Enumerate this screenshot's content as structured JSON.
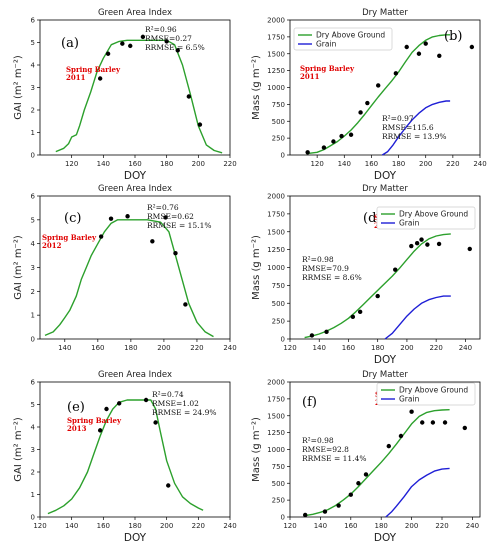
{
  "colors": {
    "green_curve": "#2ca02c",
    "grain_curve": "#1f1fd6",
    "observed_points": "#000000",
    "crop_label": "#e00000"
  },
  "chart_data": [
    {
      "id": "a",
      "type": "line",
      "title": "Green Area Index",
      "xlabel": "DOY",
      "ylabel": "GAI (m² m⁻²)",
      "xlim": [
        100,
        220
      ],
      "ylim": [
        0,
        6
      ],
      "xticks": [
        "120",
        "140",
        "160",
        "180",
        "200",
        "220"
      ],
      "xtick_values": [
        120,
        140,
        160,
        180,
        200,
        220
      ],
      "yticks": [
        "0",
        "1",
        "2",
        "3",
        "4",
        "5",
        "6"
      ],
      "ytick_values": [
        0,
        1,
        2,
        3,
        4,
        5,
        6
      ],
      "panel_letter": "(a)",
      "crop_label": [
        "Spring Barley",
        "2011"
      ],
      "stats": [
        "R²=0.96",
        "RMSE=0.27",
        "RRMSE = 6.5%"
      ],
      "legend": [],
      "series": [
        {
          "kind": "line",
          "color": "#2ca02c",
          "x": [
            110,
            115,
            118,
            120,
            123,
            125,
            128,
            132,
            136,
            140,
            145,
            150,
            155,
            160,
            165,
            170,
            175,
            180,
            185,
            190,
            195,
            200,
            205,
            210,
            215
          ],
          "y": [
            0.15,
            0.3,
            0.5,
            0.8,
            0.9,
            1.3,
            2.0,
            2.8,
            3.7,
            4.3,
            4.9,
            5.05,
            5.1,
            5.1,
            5.1,
            5.1,
            5.1,
            5.1,
            4.9,
            4.0,
            2.7,
            1.3,
            0.45,
            0.2,
            0.1
          ]
        },
        {
          "kind": "scatter",
          "color": "#000000",
          "x": [
            138,
            143,
            152,
            157,
            165,
            180,
            187,
            194,
            201
          ],
          "y": [
            3.4,
            4.5,
            4.95,
            4.85,
            5.25,
            5.05,
            4.65,
            2.6,
            1.35
          ]
        }
      ]
    },
    {
      "id": "b",
      "type": "line",
      "title": "Dry Matter",
      "xlabel": "DOY",
      "ylabel": "Mass (g m⁻²)",
      "xlim": [
        100,
        240
      ],
      "ylim": [
        0,
        2000
      ],
      "xticks": [
        "120",
        "140",
        "160",
        "180",
        "200",
        "220",
        "240"
      ],
      "xtick_values": [
        120,
        140,
        160,
        180,
        200,
        220,
        240
      ],
      "yticks": [
        "0",
        "250",
        "500",
        "750",
        "1000",
        "1250",
        "1500",
        "1750",
        "2000"
      ],
      "ytick_values": [
        0,
        250,
        500,
        750,
        1000,
        1250,
        1500,
        1750,
        2000
      ],
      "panel_letter": "(b)",
      "crop_label": [
        "Spring Barley",
        "2011"
      ],
      "stats": [
        "R²=0.97",
        "RMSE=115.6",
        "RRMSE = 13.9%"
      ],
      "legend": [
        "Dry Above Ground",
        "Grain"
      ],
      "series": [
        {
          "kind": "line",
          "name": "Dry Above Ground",
          "color": "#2ca02c",
          "x": [
            112,
            120,
            125,
            130,
            135,
            140,
            145,
            150,
            155,
            160,
            165,
            170,
            175,
            180,
            185,
            190,
            195,
            200,
            205,
            210,
            215,
            218
          ],
          "y": [
            20,
            40,
            80,
            140,
            200,
            280,
            370,
            480,
            600,
            730,
            860,
            980,
            1100,
            1230,
            1380,
            1520,
            1620,
            1700,
            1750,
            1770,
            1780,
            1780
          ]
        },
        {
          "kind": "line",
          "name": "Grain",
          "color": "#1f1fd6",
          "x": [
            168,
            172,
            176,
            180,
            185,
            190,
            195,
            200,
            205,
            210,
            215,
            218
          ],
          "y": [
            0,
            50,
            150,
            270,
            400,
            520,
            620,
            700,
            750,
            780,
            800,
            800
          ]
        },
        {
          "kind": "scatter",
          "color": "#000000",
          "x": [
            113,
            125,
            132,
            138,
            145,
            152,
            157,
            165,
            178,
            186,
            195,
            200,
            210,
            234
          ],
          "y": [
            40,
            110,
            200,
            280,
            300,
            630,
            770,
            1030,
            1210,
            1600,
            1500,
            1650,
            1470,
            1600
          ]
        }
      ]
    },
    {
      "id": "c",
      "type": "line",
      "title": "Green Area Index",
      "xlabel": "",
      "ylabel": "GAI (m² m⁻²)",
      "xlim": [
        125,
        240
      ],
      "ylim": [
        0,
        6
      ],
      "xticks": [
        "140",
        "160",
        "180",
        "200",
        "220",
        "240"
      ],
      "xtick_values": [
        140,
        160,
        180,
        200,
        220,
        240
      ],
      "yticks": [
        "0",
        "1",
        "2",
        "3",
        "4",
        "5",
        "6"
      ],
      "ytick_values": [
        0,
        1,
        2,
        3,
        4,
        5,
        6
      ],
      "panel_letter": "(c)",
      "crop_label": [
        "Spring Barley",
        "2012"
      ],
      "stats": [
        "R²=0.76",
        "RMSE=0.62",
        "RRMSE = 15.1%"
      ],
      "legend": [],
      "series": [
        {
          "kind": "line",
          "color": "#2ca02c",
          "x": [
            128,
            133,
            137,
            140,
            143,
            147,
            150,
            153,
            156,
            160,
            164,
            168,
            172,
            180,
            190,
            198,
            203,
            207,
            211,
            215,
            220,
            225,
            230
          ],
          "y": [
            0.15,
            0.3,
            0.6,
            0.9,
            1.2,
            1.8,
            2.5,
            3.0,
            3.5,
            4.0,
            4.5,
            4.85,
            5.0,
            5.0,
            5.0,
            4.9,
            4.5,
            3.5,
            2.5,
            1.5,
            0.7,
            0.3,
            0.1
          ]
        },
        {
          "kind": "scatter",
          "color": "#000000",
          "x": [
            162,
            168,
            178,
            193,
            201,
            207,
            213
          ],
          "y": [
            4.3,
            5.05,
            5.15,
            4.1,
            5.1,
            3.6,
            1.45
          ]
        }
      ]
    },
    {
      "id": "d",
      "type": "line",
      "title": "Dry Matter",
      "xlabel": "DOY",
      "ylabel": "Mass (g m⁻²)",
      "xlim": [
        120,
        250
      ],
      "ylim": [
        0,
        2000
      ],
      "xticks": [
        "120",
        "140",
        "160",
        "180",
        "200",
        "220",
        "240"
      ],
      "xtick_values": [
        120,
        140,
        160,
        180,
        200,
        220,
        240
      ],
      "yticks": [
        "0",
        "250",
        "500",
        "750",
        "1000",
        "1250",
        "1500",
        "1750",
        "2000"
      ],
      "ytick_values": [
        0,
        250,
        500,
        750,
        1000,
        1250,
        1500,
        1750,
        2000
      ],
      "panel_letter": "(d)",
      "crop_label": [
        "Spring Barley",
        "2012"
      ],
      "stats": [
        "R²=0.98",
        "RMSE=70.9",
        "RRMSE = 8.6%"
      ],
      "legend": [
        "Dry Above Ground",
        "Grain"
      ],
      "series": [
        {
          "kind": "line",
          "name": "Dry Above Ground",
          "color": "#2ca02c",
          "x": [
            130,
            135,
            140,
            145,
            150,
            155,
            160,
            165,
            170,
            175,
            180,
            185,
            190,
            195,
            200,
            205,
            210,
            215,
            220,
            225,
            230
          ],
          "y": [
            20,
            40,
            70,
            110,
            160,
            220,
            290,
            380,
            480,
            580,
            680,
            780,
            880,
            990,
            1110,
            1230,
            1330,
            1400,
            1440,
            1460,
            1470
          ]
        },
        {
          "kind": "line",
          "name": "Grain",
          "color": "#1f1fd6",
          "x": [
            185,
            190,
            195,
            200,
            205,
            210,
            215,
            220,
            225,
            230
          ],
          "y": [
            0,
            80,
            200,
            320,
            420,
            500,
            550,
            580,
            600,
            600
          ]
        },
        {
          "kind": "scatter",
          "color": "#000000",
          "x": [
            135,
            145,
            163,
            168,
            180,
            192,
            203,
            207,
            210,
            214,
            222,
            243
          ],
          "y": [
            50,
            100,
            310,
            380,
            600,
            970,
            1300,
            1340,
            1390,
            1320,
            1330,
            1260
          ]
        }
      ]
    },
    {
      "id": "e",
      "type": "line",
      "title": "Green Area Index",
      "xlabel": "DOY",
      "ylabel": "GAI (m² m⁻²)",
      "xlim": [
        120,
        240
      ],
      "ylim": [
        0,
        6
      ],
      "xticks": [
        "120",
        "140",
        "160",
        "180",
        "200",
        "220",
        "240"
      ],
      "xtick_values": [
        120,
        140,
        160,
        180,
        200,
        220,
        240
      ],
      "yticks": [
        "0",
        "1",
        "2",
        "3",
        "4",
        "5",
        "6"
      ],
      "ytick_values": [
        0,
        1,
        2,
        3,
        4,
        5,
        6
      ],
      "panel_letter": "(e)",
      "crop_label": [
        "Spring Barley",
        "2013"
      ],
      "stats": [
        "R²=0.74",
        "RMSE=1.02",
        "RRMSE = 24.9%"
      ],
      "legend": [],
      "series": [
        {
          "kind": "line",
          "color": "#2ca02c",
          "x": [
            125,
            130,
            135,
            140,
            145,
            150,
            154,
            158,
            162,
            166,
            170,
            175,
            180,
            185,
            190,
            193,
            196,
            200,
            205,
            210,
            215,
            220,
            223
          ],
          "y": [
            0.15,
            0.3,
            0.5,
            0.8,
            1.3,
            2.0,
            2.8,
            3.6,
            4.3,
            4.8,
            5.1,
            5.2,
            5.2,
            5.2,
            5.2,
            4.8,
            3.8,
            2.5,
            1.5,
            0.9,
            0.6,
            0.4,
            0.3
          ]
        },
        {
          "kind": "scatter",
          "color": "#000000",
          "x": [
            158,
            162,
            170,
            187,
            193,
            201
          ],
          "y": [
            3.85,
            4.8,
            5.05,
            5.2,
            4.2,
            1.4
          ]
        }
      ]
    },
    {
      "id": "f",
      "type": "line",
      "title": "Dry Matter",
      "xlabel": "DOY",
      "ylabel": "Mass (g m⁻²)",
      "xlim": [
        120,
        245
      ],
      "ylim": [
        0,
        2000
      ],
      "xticks": [
        "120",
        "140",
        "160",
        "180",
        "200",
        "220",
        "240"
      ],
      "xtick_values": [
        120,
        140,
        160,
        180,
        200,
        220,
        240
      ],
      "yticks": [
        "0",
        "250",
        "500",
        "750",
        "1000",
        "1250",
        "1500",
        "1750",
        "2000"
      ],
      "ytick_values": [
        0,
        250,
        500,
        750,
        1000,
        1250,
        1500,
        1750,
        2000
      ],
      "panel_letter": "(f)",
      "crop_label": [
        "Spring Barley",
        "2013"
      ],
      "stats": [
        "R²=0.98",
        "RMSE=92.8",
        "RRMSE = 11.4%"
      ],
      "legend": [
        "Dry Above Ground",
        "Grain"
      ],
      "series": [
        {
          "kind": "line",
          "name": "Dry Above Ground",
          "color": "#2ca02c",
          "x": [
            130,
            135,
            140,
            145,
            150,
            155,
            160,
            165,
            170,
            175,
            180,
            185,
            190,
            195,
            200,
            205,
            210,
            215,
            220,
            225
          ],
          "y": [
            20,
            40,
            70,
            110,
            170,
            250,
            340,
            450,
            570,
            690,
            810,
            940,
            1080,
            1230,
            1380,
            1490,
            1550,
            1575,
            1585,
            1590
          ]
        },
        {
          "kind": "line",
          "name": "Grain",
          "color": "#1f1fd6",
          "x": [
            183,
            187,
            190,
            195,
            200,
            205,
            210,
            215,
            220,
            225
          ],
          "y": [
            0,
            80,
            160,
            300,
            450,
            550,
            620,
            680,
            710,
            720
          ]
        },
        {
          "kind": "scatter",
          "color": "#000000",
          "x": [
            130,
            143,
            152,
            160,
            165,
            170,
            185,
            193,
            200,
            207,
            214,
            222,
            235
          ],
          "y": [
            30,
            80,
            170,
            330,
            500,
            630,
            1050,
            1200,
            1560,
            1400,
            1400,
            1400,
            1320
          ]
        }
      ]
    }
  ]
}
